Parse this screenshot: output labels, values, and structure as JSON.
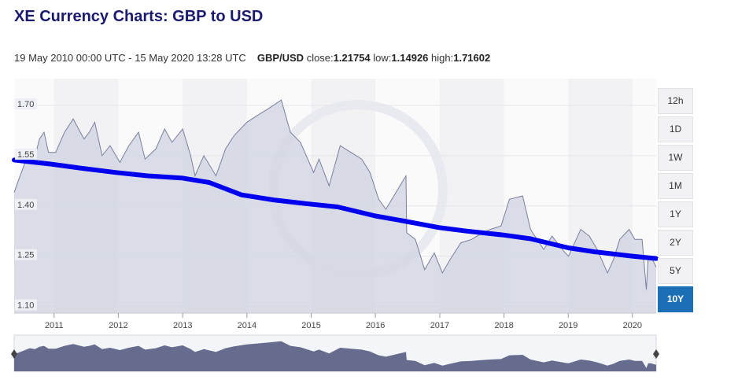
{
  "header": {
    "title": "XE Currency Charts: GBP to USD",
    "date_range": "19 May 2010 00:00 UTC - 15 May 2020 13:28 UTC",
    "pair": "GBP/USD",
    "close_label": "close:",
    "close_value": "1.21754",
    "low_label": "low:",
    "low_value": "1.14926",
    "high_label": "high:",
    "high_value": "1.71602"
  },
  "range_buttons": [
    {
      "label": "12h",
      "active": false
    },
    {
      "label": "1D",
      "active": false
    },
    {
      "label": "1W",
      "active": false
    },
    {
      "label": "1M",
      "active": false
    },
    {
      "label": "1Y",
      "active": false
    },
    {
      "label": "2Y",
      "active": false
    },
    {
      "label": "5Y",
      "active": false
    },
    {
      "label": "10Y",
      "active": true
    }
  ],
  "colors": {
    "moving_average": "#0000ee",
    "price_line": "#7a7f9e",
    "area_fill": "#d4d7e3",
    "navigator_fill": "#656c8e",
    "active_button": "#1c6fb5"
  },
  "chart_data": {
    "type": "area",
    "ylim": [
      1.08,
      1.78
    ],
    "yticks": [
      "1.70",
      "1.55",
      "1.40",
      "1.25",
      "1.10"
    ],
    "xticks": [
      "2011",
      "2012",
      "2013",
      "2014",
      "2015",
      "2016",
      "2017",
      "2018",
      "2019",
      "2020"
    ],
    "xlim": [
      "2010-05-19",
      "2020-05-15"
    ],
    "series": [
      {
        "values": [
          [
            "2010-05-19",
            1.44
          ],
          [
            "2010-06-15",
            1.48
          ],
          [
            "2010-07-20",
            1.53
          ],
          [
            "2010-08-15",
            1.57
          ],
          [
            "2010-09-15",
            1.55
          ],
          [
            "2010-10-10",
            1.6
          ],
          [
            "2010-11-05",
            1.62
          ],
          [
            "2010-11-30",
            1.56
          ],
          [
            "2011-01-10",
            1.56
          ],
          [
            "2011-03-01",
            1.62
          ],
          [
            "2011-04-20",
            1.66
          ],
          [
            "2011-05-20",
            1.63
          ],
          [
            "2011-06-20",
            1.6
          ],
          [
            "2011-07-20",
            1.62
          ],
          [
            "2011-08-20",
            1.65
          ],
          [
            "2011-10-01",
            1.55
          ],
          [
            "2011-11-15",
            1.58
          ],
          [
            "2012-01-10",
            1.53
          ],
          [
            "2012-03-01",
            1.58
          ],
          [
            "2012-04-25",
            1.62
          ],
          [
            "2012-06-01",
            1.54
          ],
          [
            "2012-08-01",
            1.57
          ],
          [
            "2012-09-20",
            1.63
          ],
          [
            "2012-11-01",
            1.59
          ],
          [
            "2013-01-01",
            1.63
          ],
          [
            "2013-02-15",
            1.55
          ],
          [
            "2013-03-12",
            1.49
          ],
          [
            "2013-05-01",
            1.55
          ],
          [
            "2013-07-09",
            1.49
          ],
          [
            "2013-09-01",
            1.57
          ],
          [
            "2013-10-20",
            1.61
          ],
          [
            "2014-01-01",
            1.65
          ],
          [
            "2014-03-01",
            1.67
          ],
          [
            "2014-05-01",
            1.69
          ],
          [
            "2014-07-15",
            1.716
          ],
          [
            "2014-09-05",
            1.62
          ],
          [
            "2014-11-01",
            1.59
          ],
          [
            "2015-01-15",
            1.5
          ],
          [
            "2015-02-15",
            1.54
          ],
          [
            "2015-04-13",
            1.46
          ],
          [
            "2015-06-15",
            1.58
          ],
          [
            "2015-08-15",
            1.56
          ],
          [
            "2015-10-15",
            1.54
          ],
          [
            "2015-12-01",
            1.5
          ],
          [
            "2016-01-20",
            1.42
          ],
          [
            "2016-03-01",
            1.39
          ],
          [
            "2016-04-15",
            1.43
          ],
          [
            "2016-06-23",
            1.49
          ],
          [
            "2016-06-27",
            1.32
          ],
          [
            "2016-08-15",
            1.3
          ],
          [
            "2016-10-07",
            1.21
          ],
          [
            "2016-12-01",
            1.26
          ],
          [
            "2017-01-16",
            1.2
          ],
          [
            "2017-03-01",
            1.24
          ],
          [
            "2017-05-01",
            1.29
          ],
          [
            "2017-07-01",
            1.3
          ],
          [
            "2017-09-01",
            1.32
          ],
          [
            "2017-10-15",
            1.33
          ],
          [
            "2017-12-15",
            1.34
          ],
          [
            "2018-02-01",
            1.42
          ],
          [
            "2018-04-17",
            1.43
          ],
          [
            "2018-06-01",
            1.33
          ],
          [
            "2018-08-15",
            1.27
          ],
          [
            "2018-10-01",
            1.31
          ],
          [
            "2018-12-15",
            1.26
          ],
          [
            "2019-01-03",
            1.25
          ],
          [
            "2019-03-13",
            1.33
          ],
          [
            "2019-05-01",
            1.31
          ],
          [
            "2019-06-15",
            1.27
          ],
          [
            "2019-08-12",
            1.2
          ],
          [
            "2019-09-15",
            1.24
          ],
          [
            "2019-10-21",
            1.3
          ],
          [
            "2019-12-13",
            1.33
          ],
          [
            "2020-01-15",
            1.3
          ],
          [
            "2020-02-25",
            1.3
          ],
          [
            "2020-03-20",
            1.15
          ],
          [
            "2020-03-31",
            1.25
          ],
          [
            "2020-04-15",
            1.25
          ],
          [
            "2020-05-15",
            1.2175
          ]
        ]
      },
      {
        "values": [
          [
            "2010-05-19",
            1.537
          ],
          [
            "2010-12-15",
            1.525
          ],
          [
            "2011-06-15",
            1.512
          ],
          [
            "2011-12-15",
            1.5
          ],
          [
            "2012-06-15",
            1.49
          ],
          [
            "2013-01-01",
            1.483
          ],
          [
            "2013-06-01",
            1.47
          ],
          [
            "2013-12-01",
            1.433
          ],
          [
            "2014-06-01",
            1.418
          ],
          [
            "2014-12-01",
            1.407
          ],
          [
            "2015-06-01",
            1.397
          ],
          [
            "2016-01-01",
            1.37
          ],
          [
            "2016-06-01",
            1.356
          ],
          [
            "2017-01-01",
            1.335
          ],
          [
            "2017-06-01",
            1.325
          ],
          [
            "2018-01-01",
            1.313
          ],
          [
            "2018-06-01",
            1.302
          ],
          [
            "2019-01-01",
            1.275
          ],
          [
            "2019-06-01",
            1.263
          ],
          [
            "2020-01-01",
            1.25
          ],
          [
            "2020-05-15",
            1.243
          ]
        ]
      }
    ]
  }
}
